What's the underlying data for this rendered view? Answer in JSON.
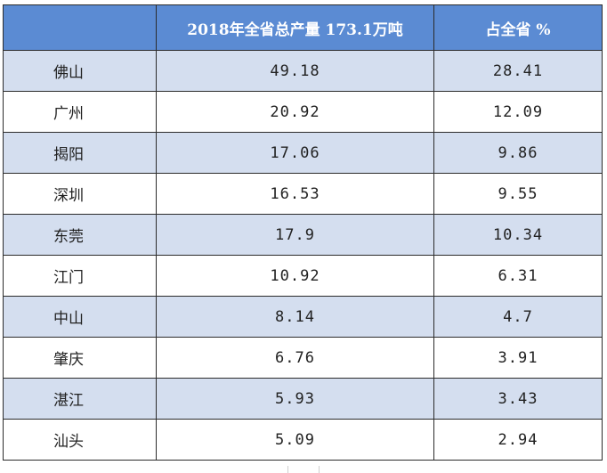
{
  "table": {
    "headers": [
      "",
      "2018年全省总产量 173.1万吨",
      "占全省 %"
    ],
    "rows": [
      {
        "city": "佛山",
        "production": "49.18",
        "share": "28.41"
      },
      {
        "city": "广州",
        "production": "20.92",
        "share": "12.09"
      },
      {
        "city": "揭阳",
        "production": "17.06",
        "share": "9.86"
      },
      {
        "city": "深圳",
        "production": "16.53",
        "share": "9.55"
      },
      {
        "city": "东莞",
        "production": "17.9",
        "share": "10.34"
      },
      {
        "city": "江门",
        "production": "10.92",
        "share": "6.31"
      },
      {
        "city": "中山",
        "production": "8.14",
        "share": "4.7"
      },
      {
        "city": "肇庆",
        "production": "6.76",
        "share": "3.91"
      },
      {
        "city": "湛江",
        "production": "5.93",
        "share": "3.43"
      },
      {
        "city": "汕头",
        "production": "5.09",
        "share": "2.94"
      }
    ]
  },
  "colors": {
    "header_bg": "#5b8bd3",
    "stripe_bg": "#d4deef",
    "border": "#2b2b2b"
  }
}
